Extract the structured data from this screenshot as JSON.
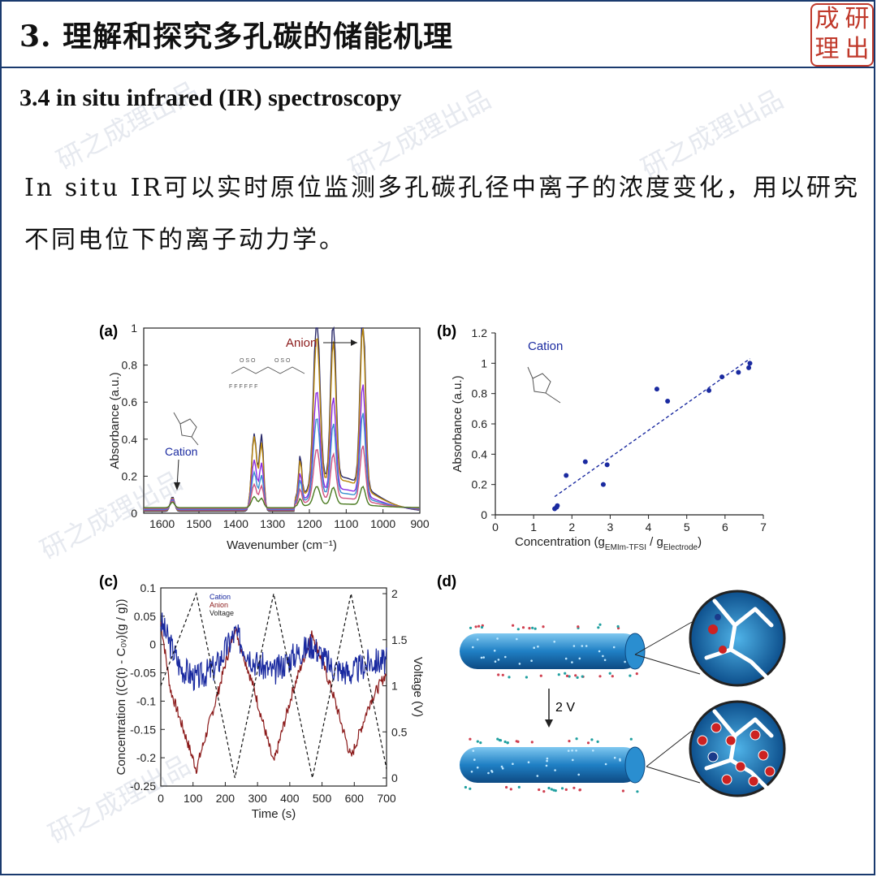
{
  "header": {
    "title": "3. 理解和探究多孔碳的储能机理",
    "logo_chars": [
      "成",
      "研",
      "理",
      "出"
    ]
  },
  "subtitle": "3.4 in situ infrared (IR) spectroscopy",
  "paragraph": "In situ IR可以实时原位监测多孔碳孔径中离子的浓度变化，用以研究不同电位下的离子动力学。",
  "watermark_text": "研之成理出品",
  "figure": {
    "panel_a": {
      "label": "(a)",
      "xlabel": "Wavenumber (cm⁻¹)",
      "ylabel": "Absorbance (a.u.)",
      "xticks": [
        "1600",
        "1500",
        "1400",
        "1300",
        "1200",
        "1100",
        "1000",
        "900"
      ],
      "yticks": [
        "0",
        "0.2",
        "0.4",
        "0.6",
        "0.8",
        "1"
      ],
      "anion_label": "Anion",
      "cation_label": "Cation"
    },
    "panel_b": {
      "label": "(b)",
      "ylabel": "Absorbance (a.u.)",
      "xlabel_main": "Concentration (g",
      "xlabel_sub1": "EMIm-TFSI",
      "xlabel_mid": " / g",
      "xlabel_sub2": "Electrode",
      "xlabel_end": ")",
      "xticks": [
        "0",
        "1",
        "2",
        "3",
        "4",
        "5",
        "6",
        "7"
      ],
      "yticks": [
        "0",
        "0.2",
        "0.4",
        "0.6",
        "0.8",
        "1",
        "1.2"
      ],
      "cation_label": "Cation"
    },
    "panel_c": {
      "label": "(c)",
      "xlabel": "Time (s)",
      "ylabel_left": "Concentration ((C(t) - C₀ᵥ)(g / g))",
      "ylabel_right": "Voltage (V)",
      "xticks": [
        "0",
        "100",
        "200",
        "300",
        "400",
        "500",
        "600",
        "700"
      ],
      "yticks_left": [
        "0.1",
        "0.05",
        "0",
        "-0.05",
        "-0.1",
        "-0.15",
        "-0.2",
        "-0.25"
      ],
      "yticks_right": [
        "2",
        "1.5",
        "1",
        "0.5",
        "0"
      ],
      "legend": [
        "Cation",
        "Anion",
        "Voltage"
      ]
    },
    "panel_d": {
      "label": "(d)",
      "arrow_label": "2 V"
    }
  },
  "chart_data": [
    {
      "type": "line",
      "title": "",
      "xlabel": "Wavenumber (cm⁻¹)",
      "ylabel": "Absorbance (a.u.)",
      "xlim": [
        1650,
        900
      ],
      "ylim": [
        0,
        1
      ],
      "peaks_x": [
        1572,
        1350,
        1330,
        1225,
        1180,
        1135,
        1055
      ],
      "series": [
        {
          "values_at_peaks": [
            0.08,
            0.42,
            0.41,
            0.22,
            0.93,
            0.87,
            0.97
          ]
        },
        {
          "values_at_peaks": [
            0.07,
            0.4,
            0.36,
            0.2,
            0.82,
            0.76,
            0.88
          ]
        },
        {
          "values_at_peaks": [
            0.06,
            0.27,
            0.25,
            0.15,
            0.56,
            0.5,
            0.6
          ]
        },
        {
          "values_at_peaks": [
            0.05,
            0.2,
            0.18,
            0.12,
            0.43,
            0.38,
            0.46
          ]
        },
        {
          "values_at_peaks": [
            0.04,
            0.13,
            0.12,
            0.08,
            0.28,
            0.24,
            0.3
          ]
        },
        {
          "values_at_peaks": [
            0.03,
            0.06,
            0.05,
            0.04,
            0.1,
            0.09,
            0.1
          ]
        }
      ]
    },
    {
      "type": "scatter",
      "title": "",
      "xlabel": "Concentration (gEMIm-TFSI / gElectrode)",
      "ylabel": "Absorbance (a.u.)",
      "xlim": [
        0,
        7
      ],
      "ylim": [
        0,
        1.2
      ],
      "x": [
        1.55,
        1.6,
        1.62,
        1.85,
        2.35,
        2.82,
        2.92,
        4.22,
        4.5,
        5.58,
        5.92,
        6.35,
        6.62,
        6.65
      ],
      "y": [
        0.04,
        0.05,
        0.06,
        0.26,
        0.35,
        0.2,
        0.33,
        0.83,
        0.75,
        0.82,
        0.91,
        0.94,
        0.97,
        1.0
      ],
      "fit": {
        "x": [
          1.55,
          6.65
        ],
        "y": [
          0.12,
          1.03
        ]
      }
    },
    {
      "type": "line",
      "title": "",
      "xlabel": "Time (s)",
      "ylabel": "Concentration ((C(t) - C0V)(g / g))",
      "xlim": [
        0,
        700
      ],
      "ylim": [
        -0.25,
        0.1
      ],
      "y2lim": [
        0,
        2
      ],
      "series": [
        {
          "name": "Cation",
          "x": [
            0,
            60,
            110,
            170,
            230,
            290,
            350,
            410,
            470,
            530,
            590,
            650,
            700
          ],
          "y": [
            0.04,
            -0.04,
            -0.06,
            -0.04,
            0.02,
            -0.03,
            -0.05,
            -0.02,
            0.0,
            -0.04,
            -0.05,
            -0.03,
            -0.03
          ]
        },
        {
          "name": "Anion",
          "x": [
            0,
            30,
            110,
            170,
            230,
            290,
            350,
            410,
            470,
            530,
            590,
            650,
            700
          ],
          "y": [
            0.04,
            -0.08,
            -0.22,
            -0.1,
            0.03,
            -0.08,
            -0.21,
            -0.08,
            0.02,
            -0.08,
            -0.2,
            -0.1,
            -0.05
          ]
        },
        {
          "name": "Voltage",
          "x": [
            0,
            110,
            230,
            350,
            470,
            590,
            700
          ],
          "y": [
            1.0,
            2.0,
            0.0,
            2.0,
            0.0,
            2.0,
            0.1
          ]
        }
      ]
    }
  ]
}
